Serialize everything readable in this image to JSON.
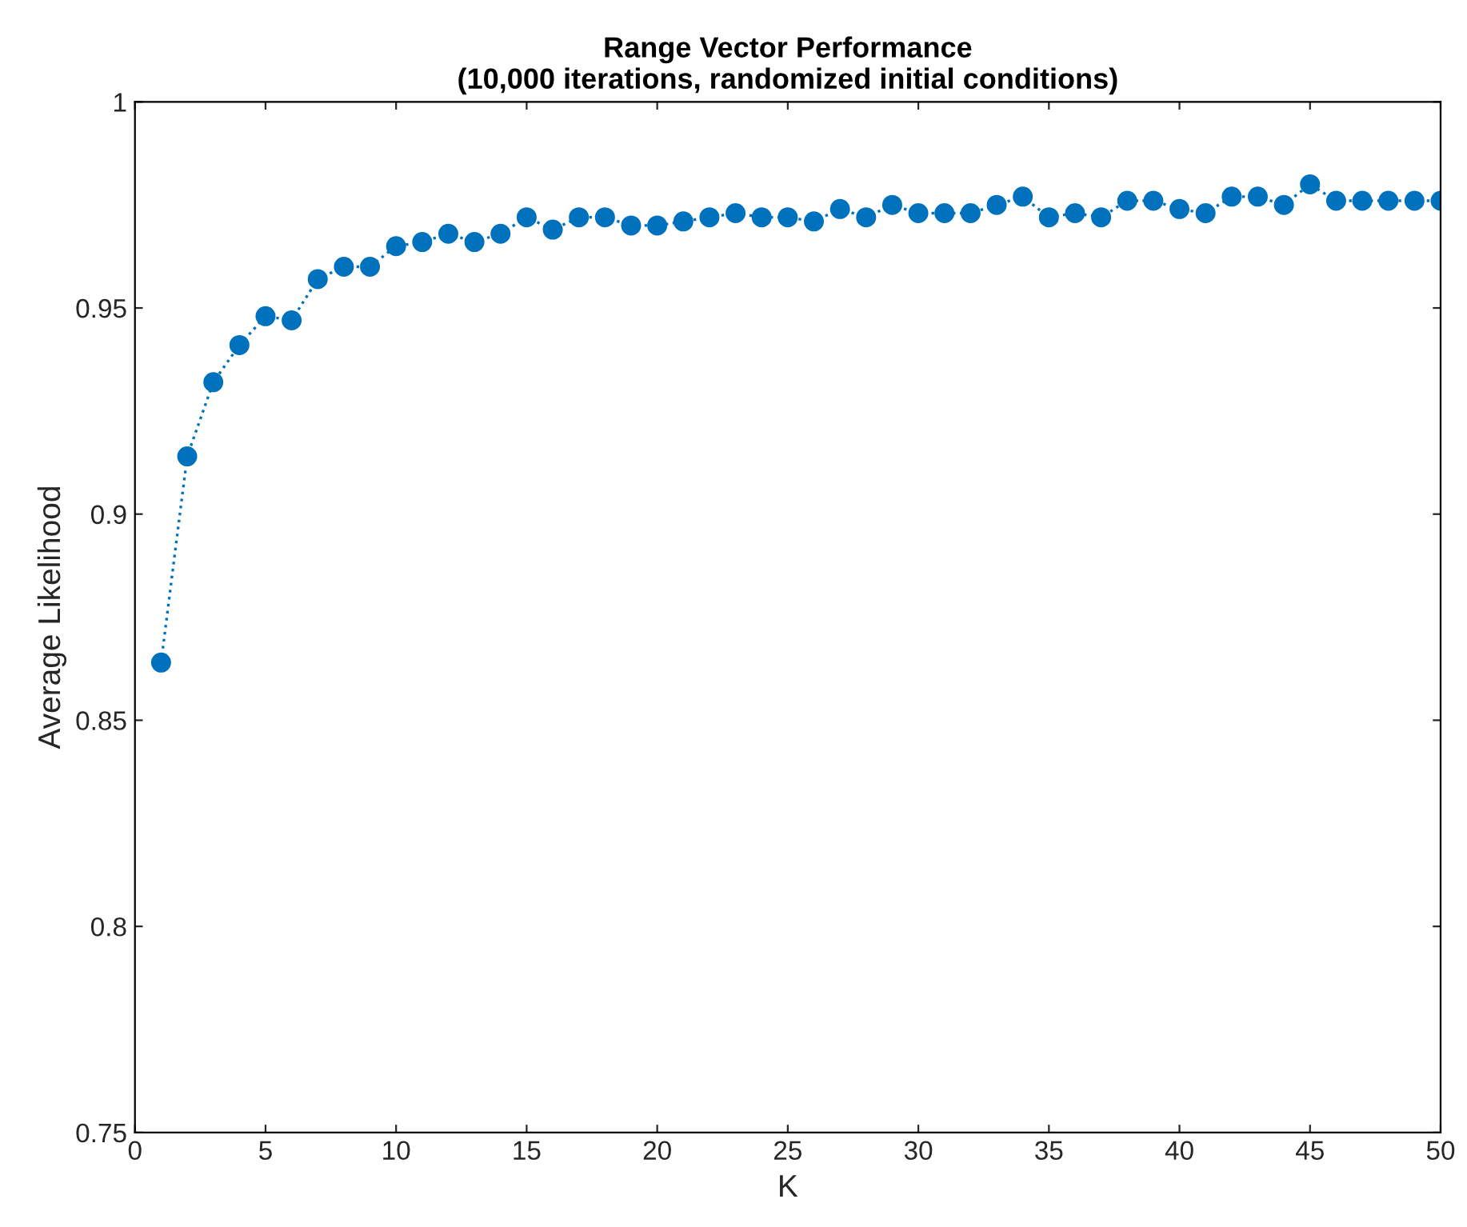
{
  "chart_data": {
    "type": "line",
    "title": "Range Vector Performance\n(10,000 iterations, randomized initial conditions)",
    "xlabel": "K",
    "ylabel": "Average Likelihood",
    "x": [
      1,
      2,
      3,
      4,
      5,
      6,
      7,
      8,
      9,
      10,
      11,
      12,
      13,
      14,
      15,
      16,
      17,
      18,
      19,
      20,
      21,
      22,
      23,
      24,
      25,
      26,
      27,
      28,
      29,
      30,
      31,
      32,
      33,
      34,
      35,
      36,
      37,
      38,
      39,
      40,
      41,
      42,
      43,
      44,
      45,
      46,
      47,
      48,
      49,
      50
    ],
    "series": [
      {
        "color": "#0072bd",
        "values": [
          0.864,
          0.914,
          0.932,
          0.941,
          0.948,
          0.947,
          0.957,
          0.96,
          0.96,
          0.965,
          0.966,
          0.968,
          0.966,
          0.968,
          0.972,
          0.969,
          0.972,
          0.972,
          0.97,
          0.97,
          0.971,
          0.972,
          0.973,
          0.972,
          0.972,
          0.971,
          0.974,
          0.972,
          0.975,
          0.973,
          0.973,
          0.973,
          0.975,
          0.977,
          0.972,
          0.973,
          0.972,
          0.976,
          0.976,
          0.974,
          0.973,
          0.977,
          0.977,
          0.975,
          0.98,
          0.976,
          0.976,
          0.976,
          0.976,
          0.976
        ]
      }
    ],
    "xlim": [
      0,
      50
    ],
    "xticks": [
      0,
      5,
      10,
      15,
      20,
      25,
      30,
      35,
      40,
      45,
      50
    ],
    "ylim": [
      0.75,
      1
    ],
    "yticks": [
      0.75,
      0.8,
      0.85,
      0.9,
      0.95,
      1
    ],
    "marker": "circle",
    "line_style": "dotted",
    "grid": false,
    "legend": false
  }
}
